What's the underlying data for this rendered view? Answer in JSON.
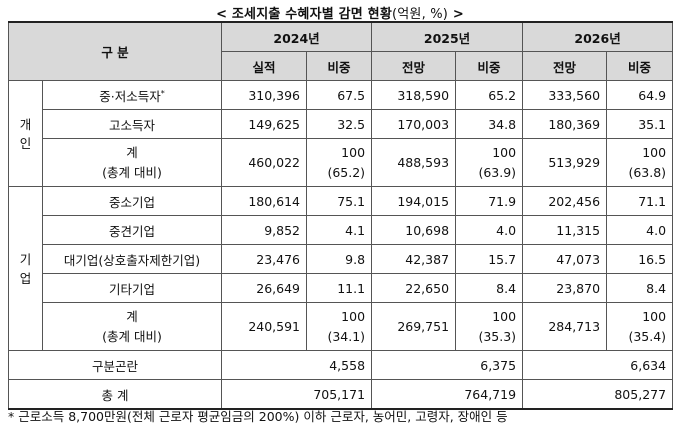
{
  "title": {
    "main": "< 조세지출 수혜자별 감면 현황",
    "unit": "(억원, %)",
    "tail": " >"
  },
  "header": {
    "category": "구 분",
    "years": [
      "2024년",
      "2025년",
      "2026년"
    ],
    "sub": [
      "실적",
      "비중",
      "전망",
      "비중",
      "전망",
      "비중"
    ]
  },
  "groups": {
    "individual": [
      "개",
      "인"
    ],
    "corporate": [
      "기",
      "업"
    ]
  },
  "rows": {
    "mid_low": {
      "label": "중·저소득자",
      "mark": "*",
      "values": [
        "310,396",
        "67.5",
        "318,590",
        "65.2",
        "333,560",
        "64.9"
      ]
    },
    "high": {
      "label": "고소득자",
      "values": [
        "149,625",
        "32.5",
        "170,003",
        "34.8",
        "180,369",
        "35.1"
      ]
    },
    "ind_total": {
      "label": "계",
      "label2": "(총계 대비)",
      "values": [
        "460,022",
        "100",
        "488,593",
        "100",
        "513,929",
        "100"
      ],
      "ratios": [
        "(65.2)",
        "(63.9)",
        "(63.8)"
      ]
    },
    "sme": {
      "label": "중소기업",
      "values": [
        "180,614",
        "75.1",
        "194,015",
        "71.9",
        "202,456",
        "71.1"
      ]
    },
    "midsize": {
      "label": "중견기업",
      "values": [
        "9,852",
        "4.1",
        "10,698",
        "4.0",
        "11,315",
        "4.0"
      ]
    },
    "large": {
      "label": "대기업(상호출자제한기업)",
      "values": [
        "23,476",
        "9.8",
        "42,387",
        "15.7",
        "47,073",
        "16.5"
      ]
    },
    "other": {
      "label": "기타기업",
      "values": [
        "26,649",
        "11.1",
        "22,650",
        "8.4",
        "23,870",
        "8.4"
      ]
    },
    "corp_total": {
      "label": "계",
      "label2": "(총계 대비)",
      "values": [
        "240,591",
        "100",
        "269,751",
        "100",
        "284,713",
        "100"
      ],
      "ratios": [
        "(34.1)",
        "(35.3)",
        "(35.4)"
      ]
    },
    "unclassified": {
      "label": "구분곤란",
      "values": [
        "4,558",
        "6,375",
        "6,634"
      ]
    },
    "grand_total": {
      "label": "총 계",
      "values": [
        "705,171",
        "764,719",
        "805,277"
      ]
    }
  },
  "note": "* 근로소득 8,700만원(전체 근로자 평균임금의 200%) 이하 근로자, 농어민, 고령자, 장애인 등"
}
